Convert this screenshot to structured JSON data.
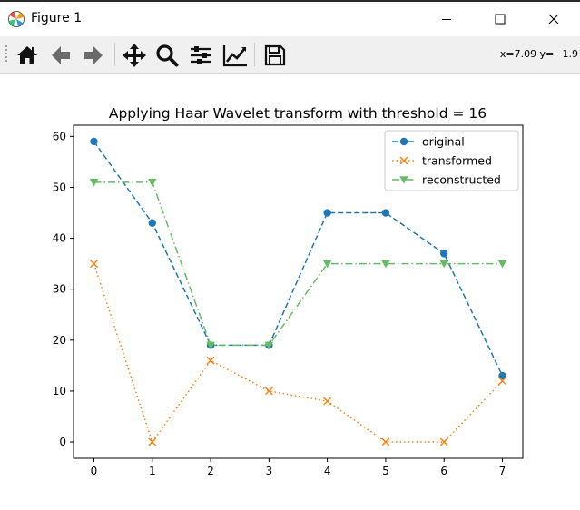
{
  "window": {
    "title": "Figure 1",
    "icon": "matplotlib-icon",
    "controls": [
      "minimize-icon",
      "maximize-icon",
      "close-icon"
    ]
  },
  "toolbar": {
    "buttons": [
      "home-icon",
      "back-arrow-icon",
      "forward-arrow-icon",
      "pan-icon",
      "zoom-icon",
      "subplots-icon",
      "edit-axis-icon",
      "save-icon"
    ],
    "coords": "x=7.09 y=−1.9"
  },
  "chart_data": {
    "type": "line",
    "title": "Applying Haar Wavelet transform with threshold = 16",
    "xlabel": "",
    "ylabel": "",
    "x": [
      0,
      1,
      2,
      3,
      4,
      5,
      6,
      7
    ],
    "xlim": [
      -0.35,
      7.35
    ],
    "ylim": [
      -3.2,
      62.2
    ],
    "xticks": [
      "0",
      "1",
      "2",
      "3",
      "4",
      "5",
      "6",
      "7"
    ],
    "yticks": [
      "0",
      "10",
      "20",
      "30",
      "40",
      "50",
      "60"
    ],
    "grid": false,
    "legend": "top-right",
    "series": [
      {
        "name": "original",
        "values": [
          59,
          43,
          19,
          19,
          45,
          45,
          37,
          13
        ],
        "color": "#1f77b4",
        "linestyle": "dashed",
        "marker": "circle"
      },
      {
        "name": "transformed",
        "values": [
          35,
          0,
          16,
          10,
          8,
          0,
          0,
          12
        ],
        "color": "#ff7f0e",
        "linestyle": "dotted",
        "marker": "x"
      },
      {
        "name": "reconstructed",
        "values": [
          51,
          51,
          19,
          19,
          35,
          35,
          35,
          35
        ],
        "color": "#66bb66",
        "linestyle": "dashdot",
        "marker": "triangle-down"
      }
    ]
  }
}
